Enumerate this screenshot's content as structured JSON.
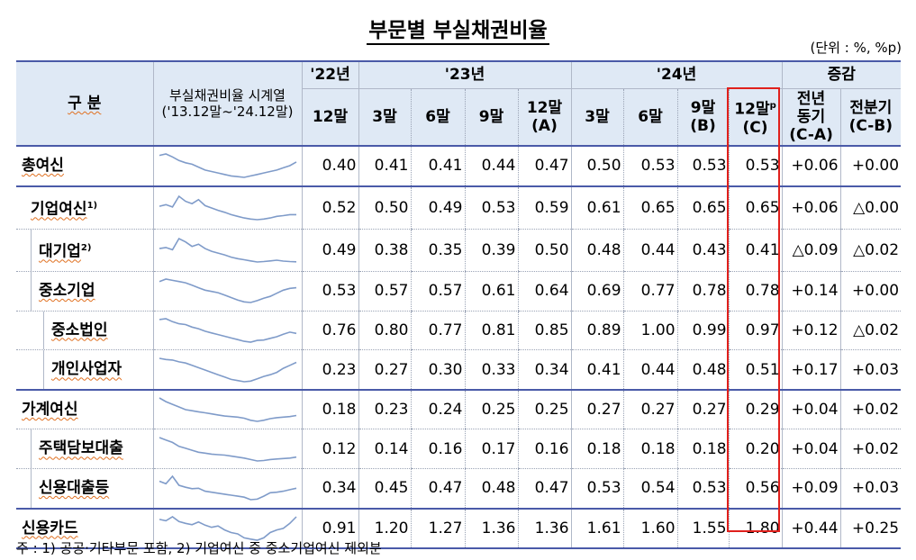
{
  "title": "부문별 부실채권비율",
  "unit": "(단위 : %, %p)",
  "header": {
    "gubun": "구 분",
    "spark_line1": "부실채권비율 시계열",
    "spark_line2": "('13.12말~'24.12말)",
    "y22": "'22년",
    "y23": "'23년",
    "y24": "'24년",
    "change": "증감",
    "col_22_12": "12말",
    "col_23_3": "3말",
    "col_23_6": "6말",
    "col_23_9": "9말",
    "col_23_12": "12말",
    "col_23_12_sub": "(A)",
    "col_24_3": "3말",
    "col_24_6": "6말",
    "col_24_9": "9말",
    "col_24_9_sub": "(B)",
    "col_24_12": "12말",
    "col_24_12_sup": "p",
    "col_24_12_sub": "(C)",
    "yoy_line1": "전년",
    "yoy_line2": "동기",
    "yoy_sub": "(C-A)",
    "qoq_line1": "전분기",
    "qoq_sub": "(C-B)"
  },
  "rows": [
    {
      "label": "총여신",
      "sup": "",
      "values": [
        "0.40",
        "0.41",
        "0.41",
        "0.44",
        "0.47",
        "0.50",
        "0.53",
        "0.53",
        "0.53"
      ],
      "yoy": "+0.06",
      "qoq": "+0.00"
    },
    {
      "label": "기업여신",
      "sup": "1)",
      "values": [
        "0.52",
        "0.50",
        "0.49",
        "0.53",
        "0.59",
        "0.61",
        "0.65",
        "0.65",
        "0.65"
      ],
      "yoy": "+0.06",
      "qoq": "△0.00"
    },
    {
      "label": "대기업",
      "sup": "2)",
      "values": [
        "0.49",
        "0.38",
        "0.35",
        "0.39",
        "0.50",
        "0.48",
        "0.44",
        "0.43",
        "0.41"
      ],
      "yoy": "△0.09",
      "qoq": "△0.02"
    },
    {
      "label": "중소기업",
      "sup": "",
      "values": [
        "0.53",
        "0.57",
        "0.57",
        "0.61",
        "0.64",
        "0.69",
        "0.77",
        "0.78",
        "0.78"
      ],
      "yoy": "+0.14",
      "qoq": "+0.00"
    },
    {
      "label": "중소법인",
      "sup": "",
      "values": [
        "0.76",
        "0.80",
        "0.77",
        "0.81",
        "0.85",
        "0.89",
        "1.00",
        "0.99",
        "0.97"
      ],
      "yoy": "+0.12",
      "qoq": "△0.02"
    },
    {
      "label": "개인사업자",
      "sup": "",
      "values": [
        "0.23",
        "0.27",
        "0.30",
        "0.33",
        "0.34",
        "0.41",
        "0.44",
        "0.48",
        "0.51"
      ],
      "yoy": "+0.17",
      "qoq": "+0.03"
    },
    {
      "label": "가계여신",
      "sup": "",
      "values": [
        "0.18",
        "0.23",
        "0.24",
        "0.25",
        "0.25",
        "0.27",
        "0.27",
        "0.27",
        "0.29"
      ],
      "yoy": "+0.04",
      "qoq": "+0.02"
    },
    {
      "label": "주택담보대출",
      "sup": "",
      "values": [
        "0.12",
        "0.14",
        "0.16",
        "0.17",
        "0.16",
        "0.18",
        "0.18",
        "0.18",
        "0.20"
      ],
      "yoy": "+0.04",
      "qoq": "+0.02"
    },
    {
      "label": "신용대출등",
      "sup": "",
      "values": [
        "0.34",
        "0.45",
        "0.47",
        "0.48",
        "0.47",
        "0.53",
        "0.54",
        "0.53",
        "0.56"
      ],
      "yoy": "+0.09",
      "qoq": "+0.03"
    },
    {
      "label": "신용카드",
      "sup": "",
      "values": [
        "0.91",
        "1.20",
        "1.27",
        "1.36",
        "1.36",
        "1.61",
        "1.60",
        "1.55",
        "1.80"
      ],
      "yoy": "+0.44",
      "qoq": "+0.25"
    }
  ],
  "sparklines": [
    [
      0.62,
      0.64,
      0.6,
      0.55,
      0.52,
      0.5,
      0.46,
      0.42,
      0.4,
      0.38,
      0.36,
      0.34,
      0.33,
      0.32,
      0.34,
      0.36,
      0.38,
      0.4,
      0.42,
      0.45,
      0.48,
      0.53
    ],
    [
      0.9,
      0.95,
      0.88,
      1.2,
      1.05,
      0.98,
      1.1,
      0.92,
      0.85,
      0.78,
      0.72,
      0.65,
      0.6,
      0.55,
      0.52,
      0.5,
      0.52,
      0.55,
      0.6,
      0.62,
      0.65,
      0.65
    ],
    [
      1.0,
      1.05,
      0.95,
      1.45,
      1.3,
      1.1,
      1.2,
      1.0,
      0.88,
      0.8,
      0.72,
      0.62,
      0.55,
      0.5,
      0.45,
      0.4,
      0.42,
      0.45,
      0.48,
      0.44,
      0.42,
      0.41
    ],
    [
      0.88,
      0.92,
      0.9,
      0.88,
      0.86,
      0.82,
      0.78,
      0.74,
      0.72,
      0.7,
      0.66,
      0.62,
      0.58,
      0.55,
      0.54,
      0.57,
      0.61,
      0.64,
      0.69,
      0.74,
      0.77,
      0.78
    ],
    [
      1.3,
      1.32,
      1.25,
      1.2,
      1.18,
      1.12,
      1.08,
      1.02,
      0.98,
      0.94,
      0.9,
      0.86,
      0.82,
      0.78,
      0.76,
      0.8,
      0.81,
      0.85,
      0.89,
      0.95,
      1.0,
      0.97
    ],
    [
      0.58,
      0.56,
      0.55,
      0.52,
      0.5,
      0.46,
      0.42,
      0.38,
      0.34,
      0.3,
      0.26,
      0.22,
      0.2,
      0.18,
      0.19,
      0.23,
      0.27,
      0.3,
      0.34,
      0.41,
      0.46,
      0.51
    ],
    [
      0.62,
      0.55,
      0.5,
      0.45,
      0.4,
      0.38,
      0.36,
      0.34,
      0.32,
      0.3,
      0.28,
      0.27,
      0.26,
      0.24,
      0.2,
      0.18,
      0.2,
      0.23,
      0.25,
      0.26,
      0.27,
      0.29
    ],
    [
      0.6,
      0.55,
      0.5,
      0.42,
      0.38,
      0.34,
      0.3,
      0.28,
      0.26,
      0.25,
      0.24,
      0.22,
      0.2,
      0.18,
      0.15,
      0.12,
      0.13,
      0.15,
      0.16,
      0.17,
      0.18,
      0.2
    ],
    [
      0.7,
      0.65,
      0.8,
      0.62,
      0.58,
      0.55,
      0.56,
      0.5,
      0.48,
      0.46,
      0.44,
      0.42,
      0.4,
      0.38,
      0.33,
      0.34,
      0.4,
      0.47,
      0.48,
      0.5,
      0.53,
      0.56
    ],
    [
      1.7,
      1.65,
      1.8,
      1.62,
      1.55,
      1.5,
      1.6,
      1.48,
      1.4,
      1.45,
      1.3,
      1.2,
      1.15,
      1.0,
      0.95,
      0.91,
      1.0,
      1.2,
      1.3,
      1.36,
      1.55,
      1.8
    ]
  ],
  "colors": {
    "spark": "#7f9bc9",
    "highlight": "#e0201c",
    "header_bg": "#dfe9f5",
    "rule": "#4a5aa8"
  },
  "note": "주 : 1) 공공·기타부문 포함,   2) 기업여신 중 중소기업여신 제외분"
}
